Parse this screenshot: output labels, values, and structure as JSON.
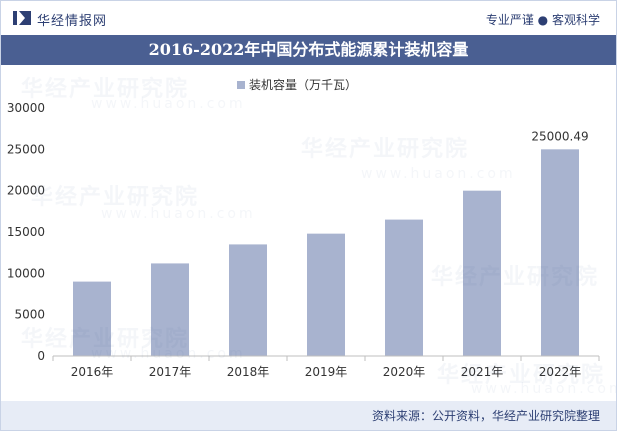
{
  "header": {
    "brand": "华经情报网",
    "tagline_left": "专业严谨",
    "tagline_sep": "●",
    "tagline_right": "客观科学"
  },
  "title": "2016-2022年中国分布式能源累计装机容量",
  "watermark": {
    "text": "华经产业研究院",
    "url": "www.huaon.com"
  },
  "footer": {
    "source": "资料来源：公开资料，华经产业研究院整理"
  },
  "colors": {
    "bar": "#a8b3cf",
    "title_bg": "#4a5f92",
    "brand": "#2d3f73",
    "footer_bg": "#e7ecf6"
  },
  "chart_data": {
    "type": "bar",
    "categories": [
      "2016年",
      "2017年",
      "2018年",
      "2019年",
      "2020年",
      "2021年",
      "2022年"
    ],
    "series": [
      {
        "name": "装机容量（万千瓦）",
        "values": [
          9000,
          11200,
          13500,
          14800,
          16500,
          20000,
          25000.49
        ]
      }
    ],
    "data_labels": [
      {
        "index": 6,
        "text": "25000.49"
      }
    ],
    "ylim": [
      0,
      30000
    ],
    "yticks": [
      0,
      5000,
      10000,
      15000,
      20000,
      25000,
      30000
    ],
    "grid": false,
    "legend_position": "top-center"
  }
}
